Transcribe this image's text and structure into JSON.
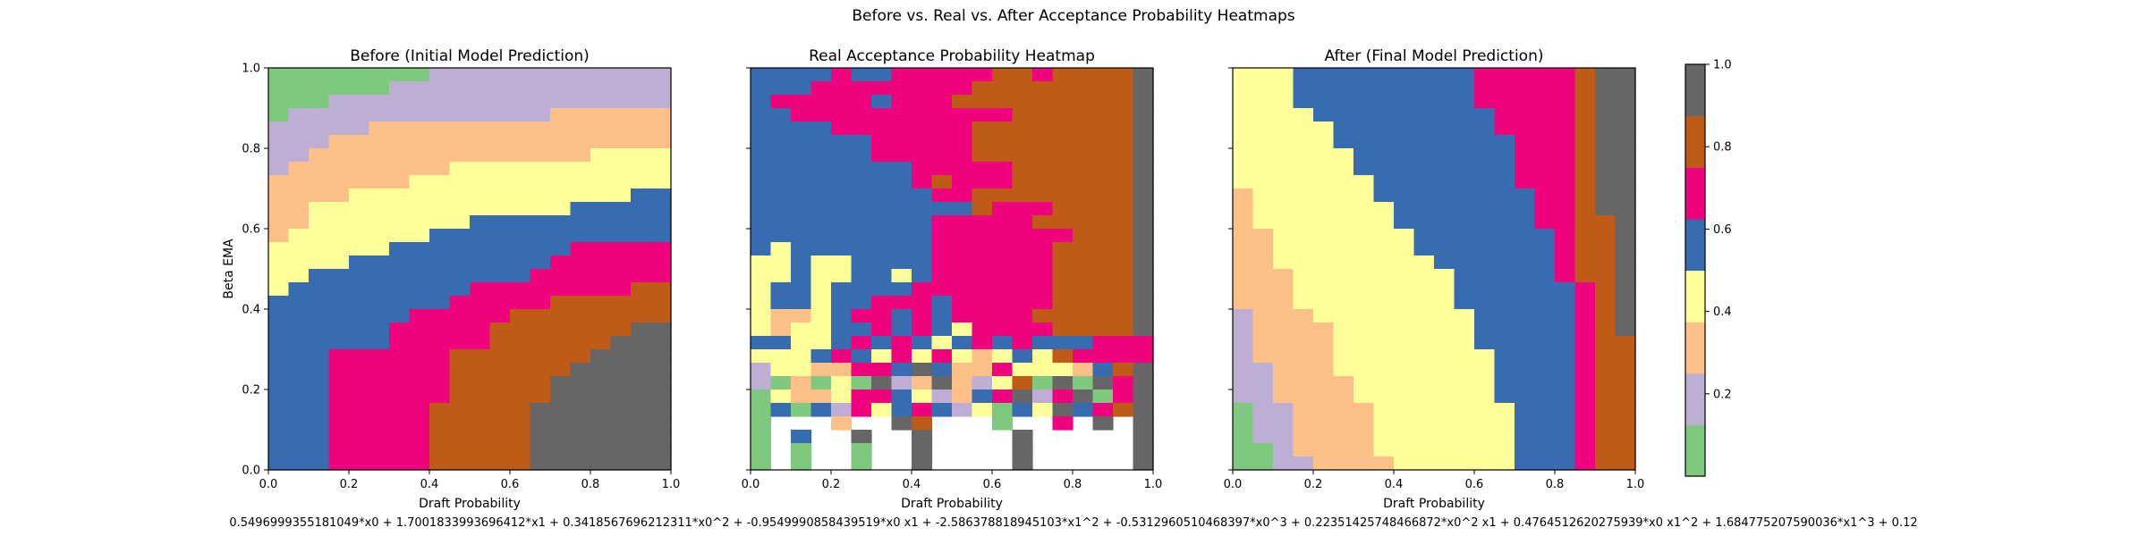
{
  "figure": {
    "suptitle": "Before vs. Real vs. After Acceptance Probability Heatmaps",
    "formula": "0.5496999355181049*x0 + 1.7001833993696412*x1 + 0.3418567696212311*x0^2 + -0.9549990858439519*x0 x1 + -2.586378818945103*x1^2 + -0.5312960510468397*x0^3 + 0.22351425748466872*x0^2 x1 + 0.4764512620275939*x0 x1^2 + 1.684775207590036*x1^3 + 0.12"
  },
  "palette": [
    "#7fc97f",
    "#beaed4",
    "#fdc086",
    "#ffff99",
    "#386cb0",
    "#f0027f",
    "#bf5b17",
    "#666666"
  ],
  "chart_data": [
    {
      "type": "heatmap",
      "title": "Before (Initial Model Prediction)",
      "xlabel": "Draft Probability",
      "ylabel": "Beta EMA",
      "xlim": [
        0,
        1
      ],
      "ylim": [
        0,
        1
      ],
      "xticks": [
        "0.0",
        "0.2",
        "0.4",
        "0.6",
        "0.8",
        "1.0"
      ],
      "yticks": [
        "0.0",
        "0.2",
        "0.4",
        "0.6",
        "0.8",
        "1.0"
      ],
      "grid_size": 20,
      "value_range": [
        0,
        1
      ],
      "cell_encoding": "8 colour bins of width 0.125 (bin 0 = 0–0.125 … bin 7 = 0.875–1.0); rows listed from top (beta 1.0) to bottom (beta 0.0), columns left to right (draft 0 → 1)",
      "rows": [
        "00000000111111111111",
        "00000011111111111111",
        "00011111111111111111",
        "01111111111111222222",
        "11111222222222222222",
        "11122222222222222222",
        "11222222222222223333",
        "12222222233333333333",
        "22222223333333333333",
        "22223333333333333344",
        "22333333333333344444",
        "22333333334444444444",
        "23333333444444444444",
        "33333344444444455555",
        "33334444444444555555",
        "33444444444445555555",
        "34444444445555555566",
        "44444444455555666666",
        "44444445555566666666",
        "44444455555666666677",
        "44444455555666666777",
        "44455555566666667777",
        "44455555566666677777",
        "44455555566666777777",
        "44455555566666777777",
        "44455555666667777777",
        "44455555666667777777",
        "44455555666667777777",
        "44455555666667777777",
        "44455555666667777777"
      ]
    },
    {
      "type": "heatmap",
      "title": "Real Acceptance Probability Heatmap",
      "xlabel": "Draft Probability",
      "xlim": [
        0,
        1
      ],
      "ylim": [
        0,
        1
      ],
      "xticks": [
        "0.0",
        "0.2",
        "0.4",
        "0.6",
        "0.8",
        "1.0"
      ],
      "grid_size": 20,
      "value_range": [
        0,
        1
      ],
      "cell_encoding": "8 colour bins of width 0.125; '.' = no data (blank cell); rows listed from top (beta 1.0) to bottom (beta 0.0)",
      "rows": [
        "44445445555566566667",
        "44455555555666666667",
        "45555545556666666667",
        "44555555555556666667",
        "44445555555666666667",
        "44444455555666666667",
        "44444455555666666667",
        "44444444555556666667",
        "44444444565556666667",
        "44444444455666666667",
        "44444444444655566667",
        "44444444455555666667",
        "44444444455555556667",
        "43444444455555566667",
        "33433444455555566667",
        "33433443455555566667",
        "34434444555555566667",
        "34434455545555566667",
        "32234554545555666667",
        "32334454543555566667",
        "44334545434545444555",
        "33345435353234365555",
        "13322554742253332467",
        "10203071272136070757",
        "03223554312457157057",
        "04041534541304374567",
        "0...2..76...0..5.7.7",
        "0.4..7..7....7.....7",
        "0.0..0..7....7.....7",
        "0.0..0..7....7.....7"
      ]
    },
    {
      "type": "heatmap",
      "title": "After (Final Model Prediction)",
      "xlabel": "Draft Probability",
      "xlim": [
        0,
        1
      ],
      "ylim": [
        0,
        1
      ],
      "xticks": [
        "0.0",
        "0.2",
        "0.4",
        "0.6",
        "0.8",
        "1.0"
      ],
      "grid_size": 20,
      "value_range": [
        0,
        1
      ],
      "cell_encoding": "8 colour bins of width 0.125; rows listed from top (beta 1.0) to bottom (beta 0.0)",
      "rows": [
        "33344444444455555677",
        "33344444444455555677",
        "33344444444455555677",
        "33334444444445555677",
        "33333444444445555677",
        "33333444444444555677",
        "33333344444444555677",
        "33333344444444555677",
        "33333334444444555677",
        "23333334444444455677",
        "23333333444444455677",
        "23333333444444455667",
        "22333333344444445667",
        "22333333344444445667",
        "22333333334444445667",
        "22233333333444445667",
        "22233333333444444567",
        "22233333333444444567",
        "12223333333344444567",
        "12222333333344444567",
        "12222333333344444566",
        "12222333333334444566",
        "11222333333334444566",
        "11222233333334444566",
        "11222233333334444566",
        "01122223333333444566",
        "01122223333333444566",
        "01122223333333444566",
        "00122223333333444566",
        "00112222333333444566"
      ]
    },
    {
      "type": "colorbar",
      "range": [
        0,
        1
      ],
      "bins": 8,
      "ticks": [
        "0.2",
        "0.4",
        "0.6",
        "0.8",
        "1.0"
      ],
      "tick_values": [
        0.2,
        0.4,
        0.6,
        0.8,
        1.0
      ]
    }
  ]
}
